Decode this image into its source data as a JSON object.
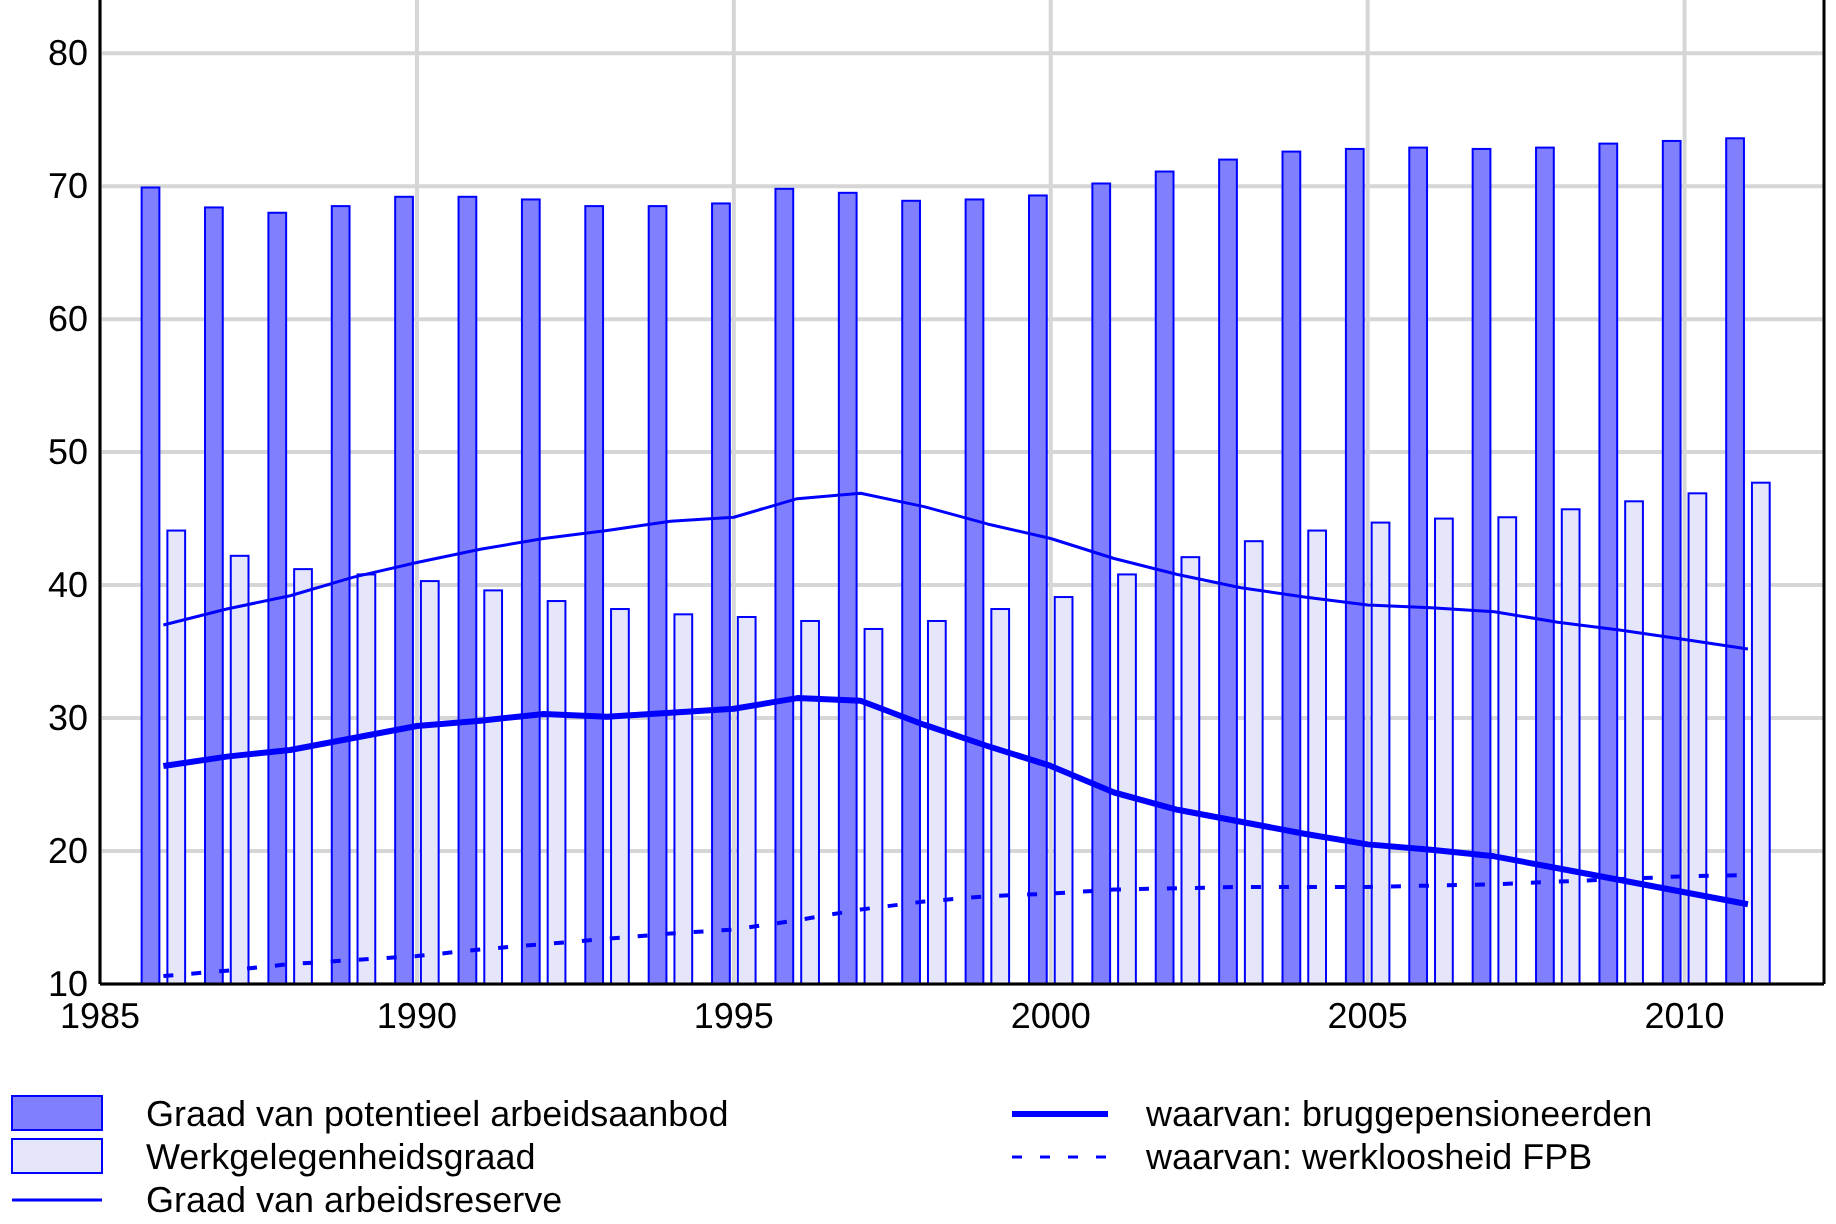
{
  "chart_data": {
    "type": "bar",
    "x": [
      1986,
      1987,
      1988,
      1989,
      1990,
      1991,
      1992,
      1993,
      1994,
      1995,
      1996,
      1997,
      1998,
      1999,
      2000,
      2001,
      2002,
      2003,
      2004,
      2005,
      2006,
      2007,
      2008,
      2009,
      2010,
      2011
    ],
    "xlim": [
      1985,
      2012.2
    ],
    "xticks": [
      1985,
      1990,
      1995,
      2000,
      2005,
      2010
    ],
    "ylim": [
      10,
      84
    ],
    "yticks": [
      10,
      20,
      30,
      40,
      50,
      60,
      70,
      80
    ],
    "grid": true,
    "legend": "bottom",
    "series": [
      {
        "name": "Graad van potentieel arbeidsaanbod",
        "color": "#8080ff",
        "values": [
          69.9,
          68.4,
          68.0,
          68.5,
          69.2,
          69.2,
          69.0,
          68.5,
          68.5,
          68.7,
          69.8,
          69.5,
          68.9,
          69.0,
          69.3,
          70.2,
          71.1,
          72.0,
          72.6,
          72.8,
          72.9,
          72.8,
          72.9,
          73.2,
          73.4,
          73.6
        ]
      },
      {
        "name": "Werkgelegenheidsgraad",
        "color": "#e6e6fa",
        "values": [
          44.1,
          42.2,
          41.2,
          40.8,
          40.3,
          39.6,
          38.8,
          38.2,
          37.8,
          37.6,
          37.3,
          36.7,
          37.3,
          38.2,
          39.1,
          40.8,
          42.1,
          43.3,
          44.1,
          44.7,
          45.0,
          45.1,
          45.7,
          46.3,
          46.9,
          47.7
        ]
      },
      {
        "name": "Graad van arbeidsreserve",
        "type": "line",
        "color": "#0000ff",
        "line_style": "solid",
        "values": [
          37.0,
          38.2,
          39.2,
          40.6,
          41.7,
          42.7,
          43.5,
          44.1,
          44.8,
          45.1,
          46.5,
          46.9,
          45.9,
          44.6,
          43.5,
          42.0,
          40.8,
          39.8,
          39.1,
          38.5,
          38.3,
          38.0,
          37.2,
          36.6,
          35.9,
          35.2
        ]
      },
      {
        "name": "waarvan: bruggepensioneerden",
        "type": "line",
        "color": "#0000ff",
        "line_style": "solid",
        "values": [
          26.4,
          27.1,
          27.6,
          28.5,
          29.4,
          29.8,
          30.3,
          30.1,
          30.4,
          30.7,
          31.5,
          31.3,
          29.5,
          27.9,
          26.4,
          24.4,
          23.1,
          22.2,
          21.3,
          20.5,
          20.1,
          19.6,
          18.7,
          17.8,
          16.9,
          16.0
        ]
      },
      {
        "name": "waarvan: werkloosheid FPB",
        "type": "line",
        "color": "#0000ff",
        "line_style": "dashed",
        "values": [
          10.6,
          11.0,
          11.5,
          11.8,
          12.1,
          12.6,
          13.0,
          13.4,
          13.8,
          14.1,
          14.8,
          15.6,
          16.2,
          16.6,
          16.8,
          17.1,
          17.2,
          17.3,
          17.3,
          17.3,
          17.4,
          17.5,
          17.7,
          17.9,
          18.1,
          18.2
        ]
      }
    ]
  }
}
